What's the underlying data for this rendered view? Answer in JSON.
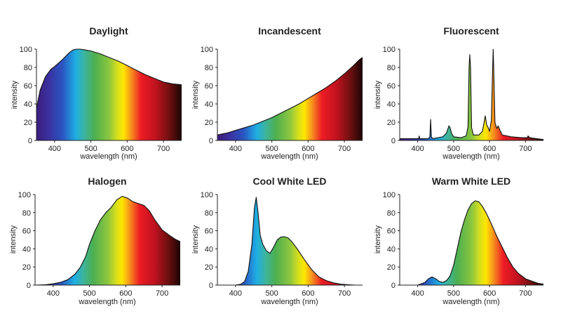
{
  "figure": {
    "panels": [
      "Daylight",
      "Incandescent",
      "Fluorescent",
      "Halogen",
      "Cool White LED",
      "Warm White LED"
    ]
  },
  "chart_data": [
    {
      "type": "area",
      "title": "Daylight",
      "xlabel": "wavelength (nm)",
      "ylabel": "intensity",
      "xlim": [
        350,
        750
      ],
      "ylim": [
        0,
        100
      ],
      "xticks": [
        400,
        500,
        600,
        700
      ],
      "yticks": [
        0,
        20,
        40,
        60,
        80,
        100
      ],
      "grid": false,
      "fill": "visible-spectrum gradient",
      "x": [
        350,
        360,
        375,
        390,
        400,
        420,
        440,
        450,
        460,
        470,
        480,
        500,
        525,
        550,
        575,
        600,
        625,
        650,
        675,
        700,
        725,
        750
      ],
      "y": [
        35,
        55,
        70,
        78,
        81,
        88,
        96,
        99,
        100,
        100,
        99.5,
        98,
        95,
        91,
        87,
        82,
        77,
        72,
        68,
        64,
        62,
        61
      ]
    },
    {
      "type": "area",
      "title": "Incandescent",
      "xlabel": "wavelength (nm)",
      "ylabel": "intensity",
      "xlim": [
        350,
        750
      ],
      "ylim": [
        0,
        100
      ],
      "xticks": [
        400,
        500,
        600,
        700
      ],
      "yticks": [
        0,
        20,
        40,
        60,
        80,
        100
      ],
      "grid": false,
      "fill": "visible-spectrum gradient",
      "x": [
        350,
        375,
        400,
        425,
        450,
        475,
        500,
        525,
        550,
        575,
        600,
        625,
        650,
        675,
        700,
        725,
        740,
        750
      ],
      "y": [
        6,
        8,
        11,
        14,
        17,
        21,
        25,
        30,
        35,
        40,
        46,
        52,
        58,
        65,
        73,
        82,
        88,
        91
      ]
    },
    {
      "type": "area",
      "title": "Fluorescent",
      "xlabel": "wavelength (nm)",
      "ylabel": "intensity",
      "xlim": [
        350,
        750
      ],
      "ylim": [
        0,
        100
      ],
      "xticks": [
        400,
        500,
        600,
        700
      ],
      "yticks": [
        0,
        20,
        40,
        60,
        80,
        100
      ],
      "grid": false,
      "fill": "visible-spectrum gradient",
      "x": [
        350,
        380,
        403,
        404,
        406,
        430,
        434,
        436,
        438,
        442,
        470,
        480,
        487,
        490,
        494,
        500,
        520,
        535,
        540,
        543,
        545,
        547,
        550,
        555,
        570,
        580,
        584,
        588,
        592,
        596,
        600,
        605,
        608,
        610,
        612,
        615,
        620,
        624,
        628,
        635,
        660,
        690,
        705,
        707,
        712,
        730,
        750
      ],
      "y": [
        2,
        2,
        2,
        5,
        2,
        2,
        4,
        23,
        4,
        2,
        4,
        8,
        16,
        14,
        8,
        4,
        3,
        5,
        15,
        80,
        94,
        80,
        14,
        6,
        6,
        10,
        18,
        27,
        17,
        14,
        10,
        22,
        70,
        100,
        70,
        20,
        13,
        16,
        12,
        6,
        4,
        3,
        3,
        5,
        3,
        2,
        1
      ]
    },
    {
      "type": "area",
      "title": "Halogen",
      "xlabel": "wavelength (nm)",
      "ylabel": "intensity",
      "xlim": [
        350,
        750
      ],
      "ylim": [
        0,
        100
      ],
      "xticks": [
        400,
        500,
        600,
        700
      ],
      "yticks": [
        0,
        20,
        40,
        60,
        80,
        100
      ],
      "grid": false,
      "fill": "visible-spectrum gradient",
      "x": [
        350,
        380,
        400,
        420,
        440,
        460,
        475,
        490,
        500,
        515,
        530,
        545,
        560,
        575,
        590,
        605,
        620,
        635,
        650,
        665,
        680,
        700,
        720,
        735,
        750
      ],
      "y": [
        0,
        0.5,
        1.5,
        3,
        6,
        12,
        20,
        32,
        45,
        60,
        72,
        80,
        86,
        94,
        98,
        96,
        92,
        90,
        88,
        82,
        72,
        61,
        55,
        51,
        48
      ]
    },
    {
      "type": "area",
      "title": "Cool White LED",
      "xlabel": "wavelength (nm)",
      "ylabel": "intensity",
      "xlim": [
        350,
        750
      ],
      "ylim": [
        0,
        100
      ],
      "xticks": [
        400,
        500,
        600,
        700
      ],
      "yticks": [
        0,
        20,
        40,
        60,
        80,
        100
      ],
      "grid": false,
      "fill": "visible-spectrum gradient",
      "x": [
        350,
        400,
        415,
        425,
        435,
        445,
        452,
        457,
        462,
        468,
        475,
        485,
        495,
        505,
        515,
        525,
        535,
        545,
        555,
        570,
        590,
        610,
        630,
        650,
        670,
        690,
        710,
        730,
        750
      ],
      "y": [
        0,
        0,
        1,
        4,
        15,
        45,
        85,
        97,
        80,
        55,
        45,
        38,
        35,
        42,
        50,
        53,
        53.5,
        52,
        48,
        40,
        28,
        17,
        9,
        5,
        2.5,
        1,
        0.5,
        0,
        0
      ]
    },
    {
      "type": "area",
      "title": "Warm White LED",
      "xlabel": "wavelength (nm)",
      "ylabel": "intensity",
      "xlim": [
        350,
        750
      ],
      "ylim": [
        0,
        100
      ],
      "xticks": [
        400,
        500,
        600,
        700
      ],
      "yticks": [
        0,
        20,
        40,
        60,
        80,
        100
      ],
      "grid": false,
      "fill": "visible-spectrum gradient",
      "x": [
        350,
        400,
        420,
        430,
        440,
        450,
        460,
        470,
        480,
        490,
        500,
        510,
        520,
        530,
        540,
        550,
        560,
        570,
        580,
        590,
        600,
        610,
        620,
        635,
        650,
        665,
        680,
        700,
        720,
        735,
        750
      ],
      "y": [
        0,
        0,
        3,
        7,
        9,
        7,
        4,
        3,
        5,
        10,
        22,
        40,
        58,
        72,
        83,
        90,
        93,
        92,
        87,
        80,
        72,
        63,
        54,
        42,
        30,
        20,
        13,
        7,
        4,
        2,
        1
      ]
    }
  ]
}
